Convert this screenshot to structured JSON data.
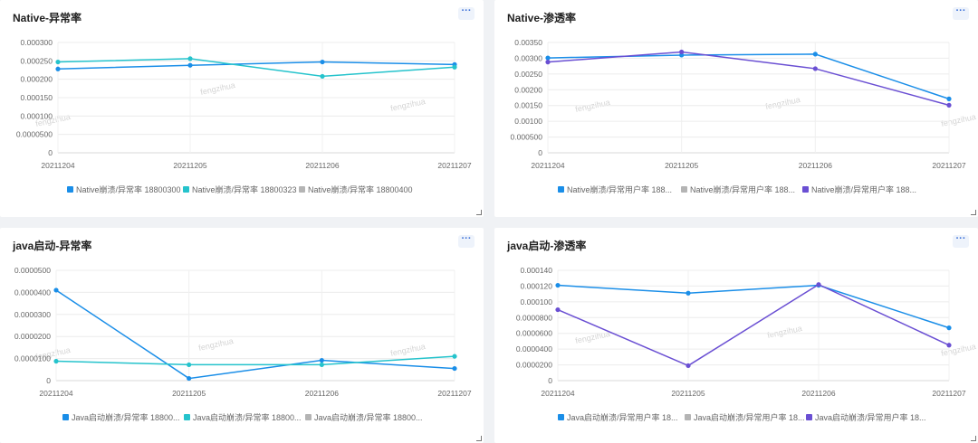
{
  "panels": [
    {
      "title": "Native-异常率",
      "menu_label": "···",
      "watermark": "fengzihua",
      "chart_data": {
        "type": "line",
        "title": "Native-异常率",
        "categories": [
          "20211204",
          "20211205",
          "20211206",
          "20211207"
        ],
        "y_ticks": [
          "0",
          "0.0000500",
          "0.000100",
          "0.000150",
          "0.000200",
          "0.000250",
          "0.000300"
        ],
        "ylim": [
          0,
          0.0003
        ],
        "legend_position": "bottom",
        "series": [
          {
            "name": "Native崩溃/异常率 18800300",
            "color": "#1a8ee8",
            "values": [
              0.000228,
              0.000238,
              0.000247,
              0.00024
            ]
          },
          {
            "name": "Native崩溃/异常率 18800323",
            "color": "#25c3cc",
            "values": [
              0.000247,
              0.000256,
              0.000208,
              0.000233
            ]
          },
          {
            "name": "Native崩溃/异常率 18800400",
            "color": "#b4b4b4",
            "values": [
              null,
              null,
              null,
              null
            ]
          }
        ]
      }
    },
    {
      "title": "Native-渗透率",
      "menu_label": "···",
      "watermark": "fengzihua",
      "chart_data": {
        "type": "line",
        "title": "Native-渗透率",
        "categories": [
          "20211204",
          "20211205",
          "20211206",
          "20211207"
        ],
        "y_ticks": [
          "0",
          "0.000500",
          "0.00100",
          "0.00150",
          "0.00200",
          "0.00250",
          "0.00300",
          "0.00350"
        ],
        "ylim": [
          0,
          0.0035
        ],
        "legend_position": "bottom",
        "series": [
          {
            "name": "Native崩溃/异常用户率 188...",
            "color": "#1a8ee8",
            "values": [
              0.00301,
              0.0031,
              0.00313,
              0.00171
            ]
          },
          {
            "name": "Native崩溃/异常用户率 188...",
            "color": "#b4b4b4",
            "values": [
              null,
              null,
              null,
              null
            ]
          },
          {
            "name": "Native崩溃/异常用户率 188...",
            "color": "#6a4fd3",
            "values": [
              0.00288,
              0.0032,
              0.00267,
              0.00151
            ]
          }
        ]
      }
    },
    {
      "title": "java启动-异常率",
      "menu_label": "···",
      "watermark": "fengzihua",
      "chart_data": {
        "type": "line",
        "title": "java启动-异常率",
        "categories": [
          "20211204",
          "20211205",
          "20211206",
          "20211207"
        ],
        "y_ticks": [
          "0",
          "0.0000100",
          "0.0000200",
          "0.0000300",
          "0.0000400",
          "0.0000500"
        ],
        "ylim": [
          0,
          5e-05
        ],
        "legend_position": "bottom",
        "series": [
          {
            "name": "Java启动崩溃/异常率 18800...",
            "color": "#1a8ee8",
            "values": [
              4.1e-05,
              1e-06,
              9.2e-06,
              5.5e-06
            ]
          },
          {
            "name": "Java启动崩溃/异常率 18800...",
            "color": "#25c3cc",
            "values": [
              8.8e-06,
              7.2e-06,
              7.2e-06,
              1.1e-05
            ]
          },
          {
            "name": "Java启动崩溃/异常率 18800...",
            "color": "#b4b4b4",
            "values": [
              null,
              null,
              null,
              null
            ]
          }
        ]
      }
    },
    {
      "title": "java启动-渗透率",
      "menu_label": "···",
      "watermark": "fengzihua",
      "chart_data": {
        "type": "line",
        "title": "java启动-渗透率",
        "categories": [
          "20211204",
          "20211205",
          "20211206",
          "20211207"
        ],
        "y_ticks": [
          "0",
          "0.0000200",
          "0.0000400",
          "0.0000600",
          "0.0000800",
          "0.000100",
          "0.000120",
          "0.000140"
        ],
        "ylim": [
          0,
          0.00014
        ],
        "legend_position": "bottom",
        "series": [
          {
            "name": "Java启动崩溃/异常用户率 18...",
            "color": "#1a8ee8",
            "values": [
              0.000121,
              0.000111,
              0.000121,
              6.7e-05
            ]
          },
          {
            "name": "Java启动崩溃/异常用户率 18...",
            "color": "#b4b4b4",
            "values": [
              null,
              null,
              null,
              null
            ]
          },
          {
            "name": "Java启动崩溃/异常用户率 18...",
            "color": "#6a4fd3",
            "values": [
              9e-05,
              1.9e-05,
              0.000122,
              4.5e-05
            ]
          }
        ]
      }
    }
  ]
}
